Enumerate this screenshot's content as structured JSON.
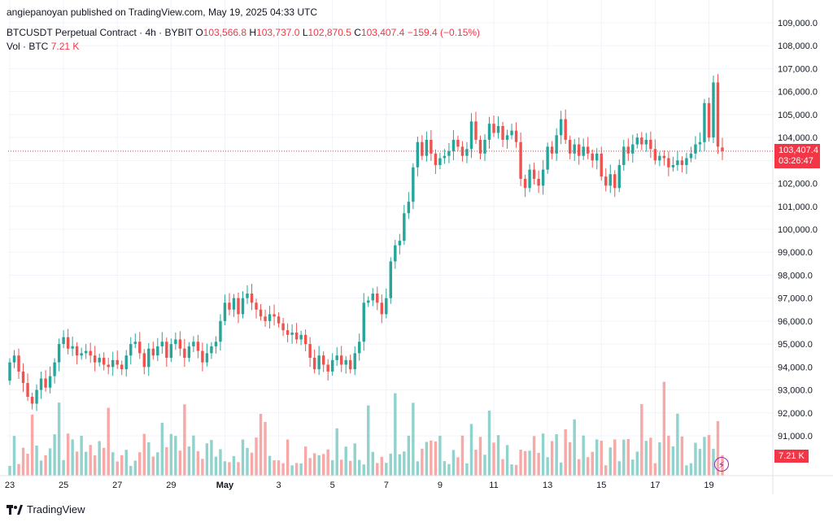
{
  "publisher": "angiepanoyan published on TradingView.com, May 19, 2025 04:33 UTC",
  "symbol_line": {
    "symbol": "BTCUSDT Perpetual Contract · 4h · BYBIT",
    "open_label": "O",
    "open": "103,566.8",
    "high_label": "H",
    "high": "103,737.0",
    "low_label": "L",
    "low": "102,870.5",
    "close_label": "C",
    "close": "103,407.4",
    "change": "−159.4 (−0.15%)"
  },
  "volume_line": {
    "label": "Vol · BTC",
    "value": "7.21 K"
  },
  "price_tag": {
    "price": "103,407.4",
    "countdown": "03:26:47"
  },
  "volume_tag": "7.21 K",
  "brand": "TradingView",
  "colors": {
    "up": "#26a69a",
    "down": "#ef5350",
    "up_vol": "#92d2cc",
    "down_vol": "#f7a9a7",
    "accent": "#f23645"
  },
  "chart_data": {
    "type": "candlestick",
    "timeframe": "4h",
    "y_ticks": [
      91000,
      92000,
      93000,
      94000,
      95000,
      96000,
      97000,
      98000,
      99000,
      100000,
      101000,
      102000,
      103000,
      104000,
      105000,
      106000,
      107000,
      108000,
      109000
    ],
    "y_tick_labels": [
      "91,000.0",
      "92,000.0",
      "93,000.0",
      "94,000.0",
      "95,000.0",
      "96,000.0",
      "97,000.0",
      "98,000.0",
      "99,000.0",
      "100,000.0",
      "101,000.0",
      "102,000.0",
      "103,000.0",
      "104,000.0",
      "105,000.0",
      "106,000.0",
      "107,000.0",
      "108,000.0",
      "109,000.0"
    ],
    "x_labels": [
      "23",
      "25",
      "27",
      "29",
      "May",
      "3",
      "5",
      "7",
      "9",
      "11",
      "13",
      "15",
      "17",
      "19"
    ],
    "current_price": 103407.4,
    "candles_approx": [
      {
        "date": "Apr 23",
        "open": 93400,
        "close": 94200
      },
      {
        "date": "Apr 23",
        "open": 94200,
        "close": 94500
      },
      {
        "date": "Apr 23",
        "open": 94500,
        "close": 93800
      },
      {
        "date": "Apr 23",
        "open": 93800,
        "close": 93300
      },
      {
        "date": "Apr 23",
        "open": 93300,
        "close": 92700
      },
      {
        "date": "Apr 23",
        "open": 92700,
        "close": 92400
      },
      {
        "date": "Apr 24",
        "open": 92400,
        "close": 93000
      },
      {
        "date": "Apr 24",
        "open": 93000,
        "close": 93500
      },
      {
        "date": "Apr 24",
        "open": 93500,
        "close": 93100
      },
      {
        "date": "Apr 24",
        "open": 93100,
        "close": 93600
      },
      {
        "date": "Apr 24",
        "open": 93600,
        "close": 94200
      },
      {
        "date": "Apr 24",
        "open": 94200,
        "close": 95000
      },
      {
        "date": "Apr 25",
        "open": 95000,
        "close": 95300
      },
      {
        "date": "Apr 25",
        "open": 95300,
        "close": 94800
      },
      {
        "date": "Apr 25",
        "open": 94800,
        "close": 94900
      },
      {
        "date": "Apr 25",
        "open": 94900,
        "close": 94500
      },
      {
        "date": "Apr 25",
        "open": 94500,
        "close": 94600
      },
      {
        "date": "Apr 25",
        "open": 94600,
        "close": 94700
      },
      {
        "date": "Apr 26",
        "open": 94700,
        "close": 94500
      },
      {
        "date": "Apr 26",
        "open": 94500,
        "close": 94200
      },
      {
        "date": "Apr 26",
        "open": 94200,
        "close": 94400
      },
      {
        "date": "Apr 26",
        "open": 94400,
        "close": 94100
      },
      {
        "date": "Apr 26",
        "open": 94100,
        "close": 94000
      },
      {
        "date": "Apr 26",
        "open": 94000,
        "close": 94300
      },
      {
        "date": "Apr 27",
        "open": 94300,
        "close": 94100
      },
      {
        "date": "Apr 27",
        "open": 94100,
        "close": 93900
      },
      {
        "date": "Apr 27",
        "open": 93900,
        "close": 94500
      },
      {
        "date": "Apr 27",
        "open": 94500,
        "close": 95000
      },
      {
        "date": "Apr 27",
        "open": 95000,
        "close": 95100
      },
      {
        "date": "Apr 27",
        "open": 95100,
        "close": 94600
      },
      {
        "date": "Apr 28",
        "open": 94600,
        "close": 94000
      },
      {
        "date": "Apr 28",
        "open": 94000,
        "close": 94800
      },
      {
        "date": "Apr 28",
        "open": 94800,
        "close": 94500
      },
      {
        "date": "Apr 28",
        "open": 94500,
        "close": 94900
      },
      {
        "date": "Apr 28",
        "open": 94900,
        "close": 95100
      },
      {
        "date": "Apr 28",
        "open": 95100,
        "close": 94400
      },
      {
        "date": "Apr 29",
        "open": 94400,
        "close": 95000
      },
      {
        "date": "Apr 29",
        "open": 95000,
        "close": 95200
      },
      {
        "date": "Apr 29",
        "open": 95200,
        "close": 94800
      },
      {
        "date": "Apr 29",
        "open": 94800,
        "close": 94400
      },
      {
        "date": "Apr 29",
        "open": 94400,
        "close": 94900
      },
      {
        "date": "Apr 29",
        "open": 94900,
        "close": 95100
      },
      {
        "date": "Apr 30",
        "open": 95100,
        "close": 94700
      },
      {
        "date": "Apr 30",
        "open": 94700,
        "close": 94200
      },
      {
        "date": "Apr 30",
        "open": 94200,
        "close": 94600
      },
      {
        "date": "Apr 30",
        "open": 94600,
        "close": 94900
      },
      {
        "date": "Apr 30",
        "open": 94900,
        "close": 95100
      },
      {
        "date": "Apr 30",
        "open": 95100,
        "close": 96000
      },
      {
        "date": "May 1",
        "open": 96000,
        "close": 96800
      },
      {
        "date": "May 1",
        "open": 96800,
        "close": 96500
      },
      {
        "date": "May 1",
        "open": 96500,
        "close": 97000
      },
      {
        "date": "May 1",
        "open": 97000,
        "close": 96300
      },
      {
        "date": "May 1",
        "open": 96300,
        "close": 97000
      },
      {
        "date": "May 1",
        "open": 97000,
        "close": 97200
      },
      {
        "date": "May 2",
        "open": 97200,
        "close": 96800
      },
      {
        "date": "May 2",
        "open": 96800,
        "close": 96500
      },
      {
        "date": "May 2",
        "open": 96500,
        "close": 96200
      },
      {
        "date": "May 2",
        "open": 96200,
        "close": 96000
      },
      {
        "date": "May 2",
        "open": 96000,
        "close": 96300
      },
      {
        "date": "May 2",
        "open": 96300,
        "close": 96200
      },
      {
        "date": "May 3",
        "open": 96200,
        "close": 95900
      },
      {
        "date": "May 3",
        "open": 95900,
        "close": 95600
      },
      {
        "date": "May 3",
        "open": 95600,
        "close": 95400
      },
      {
        "date": "May 3",
        "open": 95400,
        "close": 95500
      },
      {
        "date": "May 3",
        "open": 95500,
        "close": 95200
      },
      {
        "date": "May 3",
        "open": 95200,
        "close": 95400
      },
      {
        "date": "May 4",
        "open": 95400,
        "close": 95000
      },
      {
        "date": "May 4",
        "open": 95000,
        "close": 94400
      },
      {
        "date": "May 4",
        "open": 94400,
        "close": 93900
      },
      {
        "date": "May 4",
        "open": 93900,
        "close": 94500
      },
      {
        "date": "May 4",
        "open": 94500,
        "close": 94100
      },
      {
        "date": "May 4",
        "open": 94100,
        "close": 93800
      },
      {
        "date": "May 5",
        "open": 93800,
        "close": 94300
      },
      {
        "date": "May 5",
        "open": 94300,
        "close": 94500
      },
      {
        "date": "May 5",
        "open": 94500,
        "close": 94100
      },
      {
        "date": "May 5",
        "open": 94100,
        "close": 94300
      },
      {
        "date": "May 5",
        "open": 94300,
        "close": 93900
      },
      {
        "date": "May 5",
        "open": 93900,
        "close": 94600
      },
      {
        "date": "May 6",
        "open": 94600,
        "close": 95100
      },
      {
        "date": "May 6",
        "open": 95100,
        "close": 96800
      },
      {
        "date": "May 6",
        "open": 96800,
        "close": 96900
      },
      {
        "date": "May 6",
        "open": 96900,
        "close": 97200
      },
      {
        "date": "May 6",
        "open": 97200,
        "close": 96800
      },
      {
        "date": "May 6",
        "open": 96800,
        "close": 96300
      },
      {
        "date": "May 7",
        "open": 96300,
        "close": 97000
      },
      {
        "date": "May 7",
        "open": 97000,
        "close": 98600
      },
      {
        "date": "May 7",
        "open": 98600,
        "close": 99300
      },
      {
        "date": "May 7",
        "open": 99300,
        "close": 99500
      },
      {
        "date": "May 7",
        "open": 99500,
        "close": 100700
      },
      {
        "date": "May 7",
        "open": 100700,
        "close": 101200
      },
      {
        "date": "May 8",
        "open": 101200,
        "close": 102700
      },
      {
        "date": "May 8",
        "open": 102700,
        "close": 103800
      },
      {
        "date": "May 8",
        "open": 103800,
        "close": 103200
      },
      {
        "date": "May 8",
        "open": 103200,
        "close": 103900
      },
      {
        "date": "May 8",
        "open": 103900,
        "close": 103300
      },
      {
        "date": "May 8",
        "open": 103300,
        "close": 102800
      },
      {
        "date": "May 9",
        "open": 102800,
        "close": 103100
      },
      {
        "date": "May 9",
        "open": 103100,
        "close": 103200
      },
      {
        "date": "May 9",
        "open": 103200,
        "close": 103400
      },
      {
        "date": "May 9",
        "open": 103400,
        "close": 103900
      },
      {
        "date": "May 9",
        "open": 103900,
        "close": 103600
      },
      {
        "date": "May 9",
        "open": 103600,
        "close": 103200
      },
      {
        "date": "May 10",
        "open": 103200,
        "close": 103500
      },
      {
        "date": "May 10",
        "open": 103500,
        "close": 104700
      },
      {
        "date": "May 10",
        "open": 104700,
        "close": 103900
      },
      {
        "date": "May 10",
        "open": 103900,
        "close": 103300
      },
      {
        "date": "May 10",
        "open": 103300,
        "close": 103900
      },
      {
        "date": "May 10",
        "open": 103900,
        "close": 104600
      },
      {
        "date": "May 11",
        "open": 104600,
        "close": 104200
      },
      {
        "date": "May 11",
        "open": 104200,
        "close": 104500
      },
      {
        "date": "May 11",
        "open": 104500,
        "close": 103900
      },
      {
        "date": "May 11",
        "open": 103900,
        "close": 104100
      },
      {
        "date": "May 11",
        "open": 104100,
        "close": 104300
      },
      {
        "date": "May 11",
        "open": 104300,
        "close": 103800
      },
      {
        "date": "May 12",
        "open": 103800,
        "close": 102200
      },
      {
        "date": "May 12",
        "open": 102200,
        "close": 101800
      },
      {
        "date": "May 12",
        "open": 101800,
        "close": 102600
      },
      {
        "date": "May 12",
        "open": 102600,
        "close": 102200
      },
      {
        "date": "May 12",
        "open": 102200,
        "close": 101900
      },
      {
        "date": "May 12",
        "open": 101900,
        "close": 102600
      },
      {
        "date": "May 13",
        "open": 102600,
        "close": 103600
      },
      {
        "date": "May 13",
        "open": 103600,
        "close": 103300
      },
      {
        "date": "May 13",
        "open": 103300,
        "close": 104100
      },
      {
        "date": "May 13",
        "open": 104100,
        "close": 104800
      },
      {
        "date": "May 13",
        "open": 104800,
        "close": 103900
      },
      {
        "date": "May 13",
        "open": 103900,
        "close": 103300
      },
      {
        "date": "May 14",
        "open": 103300,
        "close": 103700
      },
      {
        "date": "May 14",
        "open": 103700,
        "close": 103200
      },
      {
        "date": "May 14",
        "open": 103200,
        "close": 103600
      },
      {
        "date": "May 14",
        "open": 103600,
        "close": 103300
      },
      {
        "date": "May 14",
        "open": 103300,
        "close": 103000
      },
      {
        "date": "May 14",
        "open": 103000,
        "close": 103300
      },
      {
        "date": "May 15",
        "open": 103300,
        "close": 102300
      },
      {
        "date": "May 15",
        "open": 102300,
        "close": 101900
      },
      {
        "date": "May 15",
        "open": 101900,
        "close": 102400
      },
      {
        "date": "May 15",
        "open": 102400,
        "close": 101800
      },
      {
        "date": "May 15",
        "open": 101800,
        "close": 102800
      },
      {
        "date": "May 15",
        "open": 102800,
        "close": 103600
      },
      {
        "date": "May 16",
        "open": 103600,
        "close": 103300
      },
      {
        "date": "May 16",
        "open": 103300,
        "close": 103700
      },
      {
        "date": "May 16",
        "open": 103700,
        "close": 104000
      },
      {
        "date": "May 16",
        "open": 104000,
        "close": 103700
      },
      {
        "date": "May 16",
        "open": 103700,
        "close": 103900
      },
      {
        "date": "May 16",
        "open": 103900,
        "close": 103500
      },
      {
        "date": "May 17",
        "open": 103500,
        "close": 103000
      },
      {
        "date": "May 17",
        "open": 103000,
        "close": 103200
      },
      {
        "date": "May 17",
        "open": 103200,
        "close": 103100
      },
      {
        "date": "May 17",
        "open": 103100,
        "close": 102700
      },
      {
        "date": "May 17",
        "open": 102700,
        "close": 102800
      },
      {
        "date": "May 17",
        "open": 102800,
        "close": 103000
      },
      {
        "date": "May 18",
        "open": 103000,
        "close": 102800
      },
      {
        "date": "May 18",
        "open": 102800,
        "close": 103100
      },
      {
        "date": "May 18",
        "open": 103100,
        "close": 103300
      },
      {
        "date": "May 18",
        "open": 103300,
        "close": 103700
      },
      {
        "date": "May 18",
        "open": 103700,
        "close": 103800
      },
      {
        "date": "May 18",
        "open": 103800,
        "close": 105500
      },
      {
        "date": "May 19",
        "open": 105500,
        "close": 104000
      },
      {
        "date": "May 19",
        "open": 104000,
        "close": 106400
      },
      {
        "date": "May 19",
        "open": 106400,
        "close": 103600
      },
      {
        "date": "May 19",
        "open": 103566.8,
        "close": 103407.4
      }
    ]
  }
}
